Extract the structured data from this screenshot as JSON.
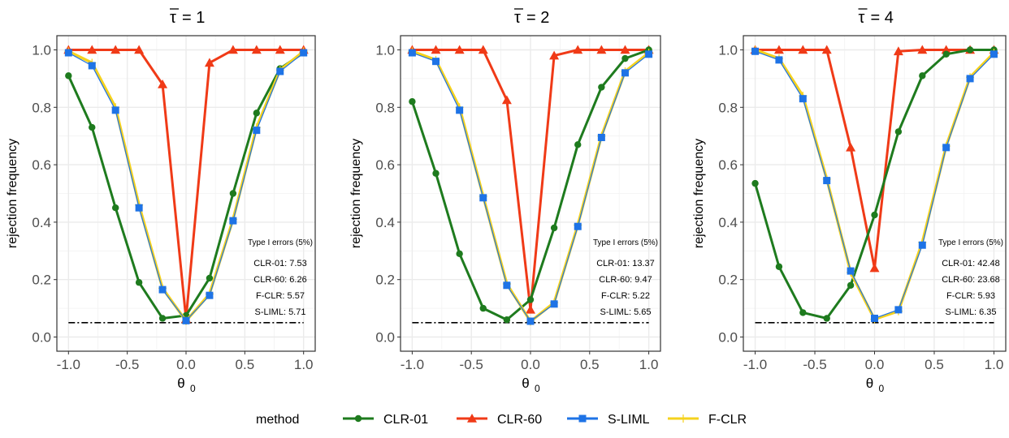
{
  "chart_data": [
    {
      "type": "line",
      "title_prefix": "τ",
      "title_value": "= 1",
      "xlabel": "θ",
      "xlabel_sub": "0",
      "ylabel": "rejection frequency",
      "xlim": [
        -1.0,
        1.0
      ],
      "ylim": [
        0.0,
        1.0
      ],
      "xticks": [
        "-1.0",
        "-0.5",
        "0.0",
        "0.5",
        "1.0"
      ],
      "yticks": [
        "0.0",
        "0.2",
        "0.4",
        "0.6",
        "0.8",
        "1.0"
      ],
      "grid": true,
      "reference_line": 0.05,
      "x": [
        -1.0,
        -0.8,
        -0.6,
        -0.4,
        -0.2,
        0.0,
        0.2,
        0.4,
        0.6,
        0.8,
        1.0
      ],
      "series": [
        {
          "name": "CLR-01",
          "values": [
            0.91,
            0.73,
            0.45,
            0.19,
            0.065,
            0.075,
            0.205,
            0.5,
            0.78,
            0.935,
            0.99
          ]
        },
        {
          "name": "CLR-60",
          "values": [
            1.0,
            1.0,
            1.0,
            1.0,
            0.88,
            0.063,
            0.955,
            1.0,
            1.0,
            1.0,
            1.0
          ]
        },
        {
          "name": "S-LIML",
          "values": [
            0.99,
            0.945,
            0.79,
            0.45,
            0.165,
            0.057,
            0.145,
            0.405,
            0.72,
            0.925,
            0.99
          ]
        },
        {
          "name": "F-CLR",
          "values": [
            0.995,
            0.955,
            0.8,
            0.46,
            0.17,
            0.056,
            0.15,
            0.41,
            0.73,
            0.93,
            0.995
          ]
        }
      ],
      "annotations": [
        "Type I errors (5%)",
        "CLR-01: 7.53",
        "CLR-60: 6.26",
        "F-CLR: 5.57",
        "S-LIML: 5.71"
      ]
    },
    {
      "type": "line",
      "title_prefix": "τ",
      "title_value": "= 2",
      "xlabel": "θ",
      "xlabel_sub": "0",
      "ylabel": "rejection frequency",
      "xlim": [
        -1.0,
        1.0
      ],
      "ylim": [
        0.0,
        1.0
      ],
      "xticks": [
        "-1.0",
        "-0.5",
        "0.0",
        "0.5",
        "1.0"
      ],
      "yticks": [
        "0.0",
        "0.2",
        "0.4",
        "0.6",
        "0.8",
        "1.0"
      ],
      "grid": true,
      "reference_line": 0.05,
      "x": [
        -1.0,
        -0.8,
        -0.6,
        -0.4,
        -0.2,
        0.0,
        0.2,
        0.4,
        0.6,
        0.8,
        1.0
      ],
      "series": [
        {
          "name": "CLR-01",
          "values": [
            0.82,
            0.57,
            0.29,
            0.1,
            0.06,
            0.13,
            0.38,
            0.67,
            0.87,
            0.97,
            1.0
          ]
        },
        {
          "name": "CLR-60",
          "values": [
            1.0,
            1.0,
            1.0,
            1.0,
            0.825,
            0.095,
            0.98,
            1.0,
            1.0,
            1.0,
            1.0
          ]
        },
        {
          "name": "S-LIML",
          "values": [
            0.99,
            0.96,
            0.79,
            0.485,
            0.18,
            0.055,
            0.115,
            0.385,
            0.695,
            0.92,
            0.985
          ]
        },
        {
          "name": "F-CLR",
          "values": [
            0.995,
            0.965,
            0.8,
            0.49,
            0.185,
            0.054,
            0.12,
            0.39,
            0.7,
            0.925,
            0.99
          ]
        }
      ],
      "annotations": [
        "Type I errors (5%)",
        "CLR-01: 13.37",
        "CLR-60: 9.47",
        "F-CLR: 5.22",
        "S-LIML: 5.65"
      ]
    },
    {
      "type": "line",
      "title_prefix": "τ",
      "title_value": "= 4",
      "xlabel": "θ",
      "xlabel_sub": "0",
      "ylabel": "rejection frequency",
      "xlim": [
        -1.0,
        1.0
      ],
      "ylim": [
        0.0,
        1.0
      ],
      "xticks": [
        "-1.0",
        "-0.5",
        "0.0",
        "0.5",
        "1.0"
      ],
      "yticks": [
        "0.0",
        "0.2",
        "0.4",
        "0.6",
        "0.8",
        "1.0"
      ],
      "grid": true,
      "reference_line": 0.05,
      "x": [
        -1.0,
        -0.8,
        -0.6,
        -0.4,
        -0.2,
        0.0,
        0.2,
        0.4,
        0.6,
        0.8,
        1.0
      ],
      "series": [
        {
          "name": "CLR-01",
          "values": [
            0.535,
            0.245,
            0.085,
            0.065,
            0.18,
            0.425,
            0.715,
            0.91,
            0.985,
            1.0,
            1.0
          ]
        },
        {
          "name": "CLR-60",
          "values": [
            1.0,
            1.0,
            1.0,
            1.0,
            0.66,
            0.24,
            0.995,
            1.0,
            1.0,
            1.0,
            1.0
          ]
        },
        {
          "name": "S-LIML",
          "values": [
            0.995,
            0.965,
            0.83,
            0.545,
            0.23,
            0.065,
            0.095,
            0.32,
            0.66,
            0.9,
            0.985
          ]
        },
        {
          "name": "F-CLR",
          "values": [
            1.0,
            0.97,
            0.84,
            0.55,
            0.225,
            0.062,
            0.09,
            0.33,
            0.665,
            0.905,
            0.99
          ]
        }
      ],
      "annotations": [
        "Type I errors (5%)",
        "CLR-01: 42.48",
        "CLR-60: 23.68",
        "F-CLR: 5.93",
        "S-LIML: 6.35"
      ]
    }
  ],
  "legend": {
    "title": "method",
    "placement": "bottom",
    "items": [
      "CLR-01",
      "CLR-60",
      "S-LIML",
      "F-CLR"
    ]
  },
  "colors": {
    "CLR-01": "#1e7b1e",
    "CLR-60": "#f03a17",
    "S-LIML": "#1e73e6",
    "F-CLR": "#f5d21e",
    "grid": "#ebebeb",
    "axis": "#333333",
    "reference": "#000000"
  },
  "markers": {
    "CLR-01": "circle",
    "CLR-60": "triangle",
    "S-LIML": "square",
    "F-CLR": "cross"
  }
}
